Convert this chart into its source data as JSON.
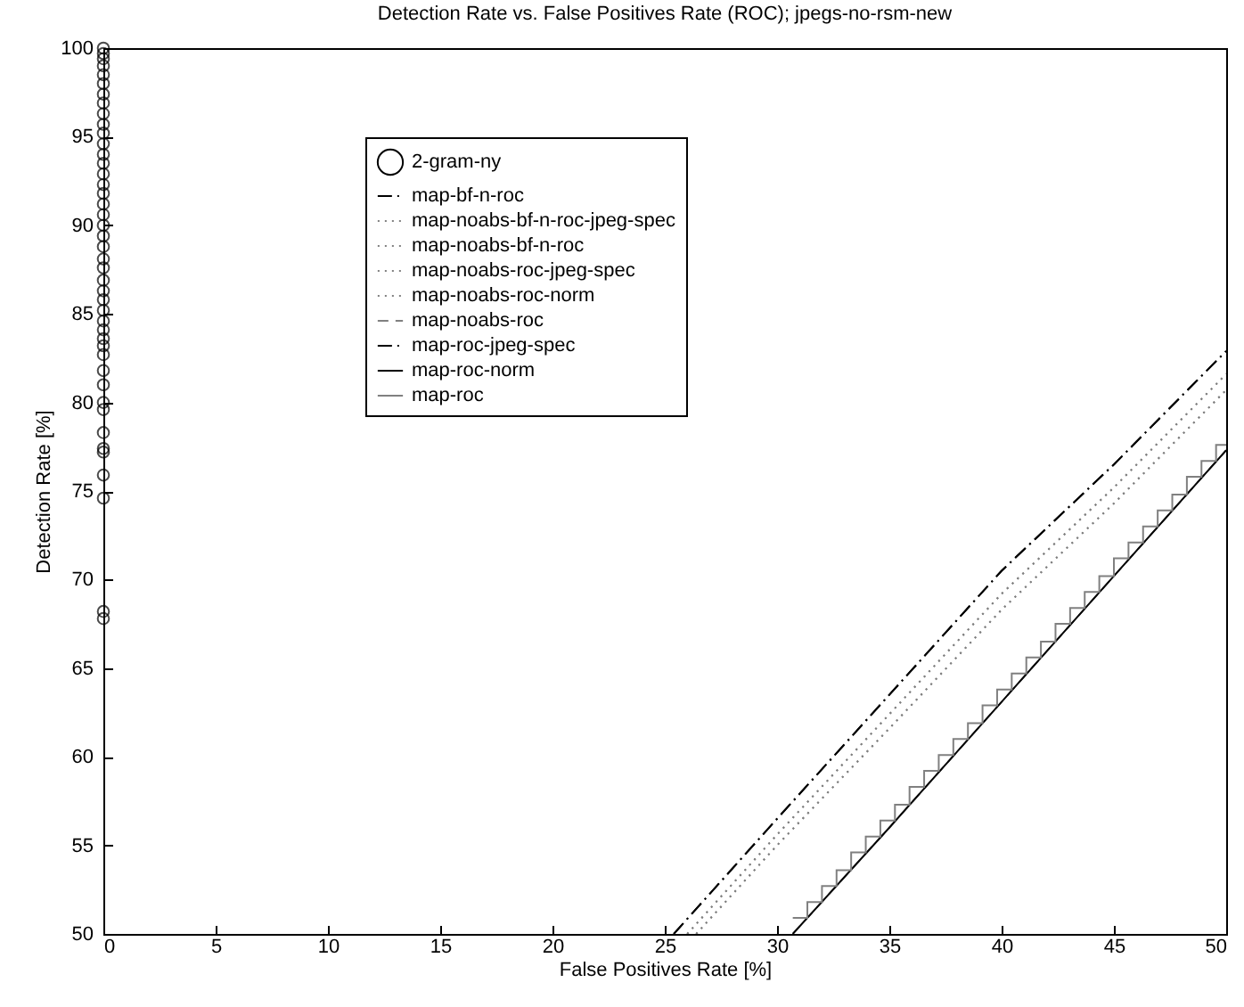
{
  "chart_data": {
    "type": "line",
    "title": "Detection Rate vs. False Positives Rate (ROC); jpegs-no-rsm-new",
    "xlabel": "False Positives Rate [%]",
    "ylabel": "Detection Rate [%]",
    "xlim": [
      0,
      50
    ],
    "ylim": [
      50,
      100
    ],
    "xticks": [
      0,
      5,
      10,
      15,
      20,
      25,
      30,
      35,
      40,
      45,
      50
    ],
    "yticks": [
      50,
      55,
      60,
      65,
      70,
      75,
      80,
      85,
      90,
      95,
      100
    ],
    "grid": false,
    "legend": "top left",
    "series": [
      {
        "name": "2-gram-ny",
        "type": "scatter",
        "marker": "circle",
        "color": "#000000",
        "x": [
          0,
          0,
          0,
          0,
          0,
          0,
          0,
          0,
          0,
          0,
          0,
          0,
          0,
          0,
          0,
          0,
          0,
          0,
          0,
          0,
          0,
          0,
          0,
          0,
          0,
          0,
          0,
          0,
          0,
          0,
          0,
          0,
          0,
          0,
          0,
          0,
          0,
          0,
          0,
          0,
          0,
          0,
          0,
          0
        ],
        "values": [
          67.8,
          68.2,
          74.6,
          75.9,
          77.2,
          77.4,
          78.3,
          79.6,
          80.0,
          81.0,
          81.8,
          82.7,
          83.2,
          83.6,
          84.1,
          84.6,
          85.2,
          85.8,
          86.3,
          86.9,
          87.6,
          88.1,
          88.8,
          89.4,
          90.0,
          90.6,
          91.2,
          91.8,
          92.3,
          92.9,
          93.5,
          94.0,
          94.6,
          95.2,
          95.7,
          96.3,
          96.9,
          97.4,
          98.0,
          98.5,
          99.0,
          99.4,
          99.7,
          100
        ]
      },
      {
        "name": "map-bf-n-roc",
        "color": "#000000",
        "line_style": "dashdot",
        "x": [
          25.4,
          30,
          35,
          40,
          45,
          50
        ],
        "values": [
          50,
          56.5,
          63.5,
          70.5,
          76.5,
          82.9
        ]
      },
      {
        "name": "map-noabs-bf-n-roc-jpeg-spec",
        "color": "#808080",
        "line_style": "dotted",
        "x": [
          26.0,
          30,
          35,
          40,
          45,
          50
        ],
        "values": [
          50,
          55.6,
          62.4,
          69.2,
          75.2,
          81.6
        ]
      },
      {
        "name": "map-noabs-bf-n-roc",
        "color": "#808080",
        "line_style": "dotted",
        "x": [
          26.0,
          30,
          35,
          40,
          45,
          50
        ],
        "values": [
          50,
          55.6,
          62.4,
          69.2,
          75.2,
          81.6
        ]
      },
      {
        "name": "map-noabs-roc-jpeg-spec",
        "color": "#808080",
        "line_style": "dotted",
        "x": [
          26.4,
          30,
          35,
          40,
          45,
          50
        ],
        "values": [
          50,
          55.0,
          61.6,
          68.3,
          74.3,
          80.7
        ]
      },
      {
        "name": "map-noabs-roc-norm",
        "color": "#808080",
        "line_style": "dotted",
        "x": [
          26.4,
          30,
          35,
          40,
          45,
          50
        ],
        "values": [
          50,
          55.0,
          61.6,
          68.3,
          74.3,
          80.7
        ]
      },
      {
        "name": "map-noabs-roc",
        "color": "#808080",
        "line_style": "dashed",
        "x": [
          30.7,
          35,
          40,
          45,
          50
        ],
        "values": [
          50,
          56.0,
          63.1,
          70.2,
          77.3
        ]
      },
      {
        "name": "map-roc-jpeg-spec",
        "color": "#000000",
        "line_style": "dashdot",
        "x": [
          25.4,
          30,
          35,
          40,
          45,
          50
        ],
        "values": [
          50,
          56.5,
          63.5,
          70.5,
          76.5,
          82.9
        ]
      },
      {
        "name": "map-roc-norm",
        "color": "#000000",
        "line_style": "solid",
        "x": [
          30.7,
          35,
          40,
          45,
          50
        ],
        "values": [
          50,
          56.0,
          63.1,
          70.2,
          77.3
        ]
      },
      {
        "name": "map-roc",
        "type": "step",
        "color": "#808080",
        "line_style": "solid",
        "x": [
          30.7,
          31.35,
          32.0,
          32.65,
          33.3,
          33.95,
          34.6,
          35.25,
          35.9,
          36.55,
          37.2,
          37.85,
          38.5,
          39.15,
          39.8,
          40.45,
          41.1,
          41.75,
          42.4,
          43.05,
          43.7,
          44.35,
          45.0,
          45.65,
          46.3,
          46.95,
          47.6,
          48.25,
          48.9,
          49.55,
          50
        ],
        "values": [
          50.9,
          51.8,
          52.7,
          53.6,
          54.6,
          55.5,
          56.4,
          57.3,
          58.3,
          59.2,
          60.1,
          61.0,
          61.9,
          62.9,
          63.8,
          64.7,
          65.6,
          66.5,
          67.5,
          68.4,
          69.3,
          70.2,
          71.2,
          72.1,
          73.0,
          73.9,
          74.8,
          75.8,
          76.7,
          77.6,
          77.6
        ]
      }
    ]
  }
}
